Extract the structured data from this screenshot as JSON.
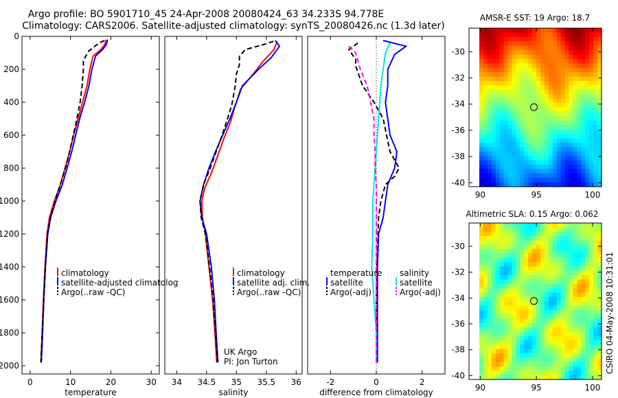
{
  "header": {
    "line1": "Argo profile: BO 5901710_45 24-Apr-2008 20080424_63 34.233S 94.778E",
    "line2": "Climatology: CARS2006. Satellite-adjusted climatology: synTS_20080426.nc (1.3d later)"
  },
  "colors": {
    "climatology": "#ff0000",
    "satellite": "#0000ff",
    "argo": "#000000",
    "argo_adj": "#ff00ff",
    "sat_salinity": "#00e5e5"
  },
  "chart_data": [
    {
      "type": "line",
      "xlabel": "temperature",
      "xlim": [
        -2,
        32
      ],
      "ylim": [
        2050,
        0
      ],
      "xticks": [
        0,
        10,
        20,
        30
      ],
      "yticks": [
        0,
        200,
        400,
        600,
        800,
        1000,
        1200,
        1400,
        1600,
        1800,
        2000
      ],
      "legend": {
        "position": "lower-right",
        "entries": [
          "climatology",
          "satellite-adjusted climatolog",
          "Argo(..raw -QC)"
        ]
      },
      "series": [
        {
          "name": "climatology",
          "color": "#ff0000",
          "dash": "solid",
          "points": [
            [
              18.8,
              20
            ],
            [
              18.5,
              50
            ],
            [
              17.5,
              80
            ],
            [
              15.6,
              120
            ],
            [
              14.8,
              200
            ],
            [
              14.1,
              300
            ],
            [
              13.0,
              400
            ],
            [
              11.9,
              500
            ],
            [
              10.8,
              600
            ],
            [
              9.8,
              700
            ],
            [
              8.9,
              780
            ],
            [
              7.5,
              900
            ],
            [
              6.0,
              1000
            ],
            [
              4.8,
              1100
            ],
            [
              4.2,
              1200
            ],
            [
              3.7,
              1400
            ],
            [
              3.3,
              1600
            ],
            [
              3.0,
              1800
            ],
            [
              2.7,
              1980
            ]
          ]
        },
        {
          "name": "satellite-adjusted climatolog",
          "color": "#0000ff",
          "dash": "solid",
          "points": [
            [
              19.2,
              20
            ],
            [
              18.9,
              50
            ],
            [
              18.0,
              80
            ],
            [
              16.2,
              120
            ],
            [
              15.3,
              200
            ],
            [
              14.6,
              300
            ],
            [
              13.5,
              400
            ],
            [
              12.3,
              500
            ],
            [
              11.3,
              600
            ],
            [
              10.3,
              700
            ],
            [
              9.4,
              780
            ],
            [
              8.0,
              900
            ],
            [
              6.4,
              1000
            ],
            [
              5.1,
              1100
            ],
            [
              4.4,
              1200
            ],
            [
              3.8,
              1400
            ],
            [
              3.4,
              1600
            ],
            [
              3.1,
              1800
            ],
            [
              2.8,
              1980
            ]
          ]
        },
        {
          "name": "Argo(..raw -QC)",
          "color": "#000000",
          "dash": "dashed",
          "points": [
            [
              18.4,
              25
            ],
            [
              17.2,
              40
            ],
            [
              16.3,
              55
            ],
            [
              14.5,
              90
            ],
            [
              13.8,
              120
            ],
            [
              13.2,
              150
            ],
            [
              13.2,
              200
            ],
            [
              12.9,
              300
            ],
            [
              12.4,
              400
            ],
            [
              11.6,
              500
            ],
            [
              10.7,
              600
            ],
            [
              9.8,
              700
            ],
            [
              9.0,
              780
            ],
            [
              7.5,
              900
            ],
            [
              6.2,
              1000
            ],
            [
              5.0,
              1100
            ],
            [
              4.3,
              1200
            ],
            [
              3.8,
              1400
            ],
            [
              3.4,
              1600
            ],
            [
              3.0,
              1800
            ],
            [
              2.7,
              1980
            ]
          ]
        }
      ]
    },
    {
      "type": "line",
      "xlabel": "salinity",
      "xlim": [
        33.8,
        36.1
      ],
      "ylim": [
        2050,
        0
      ],
      "xticks": [
        34,
        34.5,
        35,
        35.5,
        36
      ],
      "yticks": [],
      "legend": {
        "position": "lower-right",
        "entries": [
          "climatology",
          "satellite adj. clim.",
          "Argo(..raw -QC)"
        ]
      },
      "annotation": [
        "UK Argo",
        "PI: Jon Turton"
      ],
      "series": [
        {
          "name": "climatology",
          "color": "#ff0000",
          "dash": "solid",
          "points": [
            [
              35.68,
              30
            ],
            [
              35.63,
              80
            ],
            [
              35.45,
              150
            ],
            [
              35.3,
              220
            ],
            [
              35.07,
              320
            ],
            [
              34.98,
              420
            ],
            [
              34.9,
              520
            ],
            [
              34.79,
              620
            ],
            [
              34.69,
              720
            ],
            [
              34.59,
              820
            ],
            [
              34.47,
              920
            ],
            [
              34.42,
              1000
            ],
            [
              34.43,
              1100
            ],
            [
              34.48,
              1200
            ],
            [
              34.54,
              1400
            ],
            [
              34.6,
              1600
            ],
            [
              34.64,
              1800
            ],
            [
              34.67,
              1980
            ]
          ]
        },
        {
          "name": "satellite adj. clim.",
          "color": "#0000ff",
          "dash": "solid",
          "points": [
            [
              35.65,
              25
            ],
            [
              35.72,
              60
            ],
            [
              35.58,
              130
            ],
            [
              35.37,
              200
            ],
            [
              35.1,
              300
            ],
            [
              35.0,
              400
            ],
            [
              34.89,
              500
            ],
            [
              34.77,
              600
            ],
            [
              34.65,
              700
            ],
            [
              34.54,
              800
            ],
            [
              34.45,
              900
            ],
            [
              34.39,
              1000
            ],
            [
              34.42,
              1100
            ],
            [
              34.5,
              1200
            ],
            [
              34.58,
              1400
            ],
            [
              34.63,
              1600
            ],
            [
              34.66,
              1800
            ],
            [
              34.69,
              1980
            ]
          ]
        },
        {
          "name": "Argo(..raw -QC)",
          "color": "#000000",
          "dash": "dashed",
          "points": [
            [
              35.62,
              30
            ],
            [
              35.5,
              45
            ],
            [
              35.15,
              80
            ],
            [
              35.05,
              120
            ],
            [
              35.05,
              170
            ],
            [
              35.0,
              230
            ],
            [
              34.98,
              300
            ],
            [
              34.95,
              360
            ],
            [
              34.92,
              420
            ],
            [
              34.85,
              500
            ],
            [
              34.76,
              600
            ],
            [
              34.66,
              700
            ],
            [
              34.56,
              800
            ],
            [
              34.45,
              900
            ],
            [
              34.39,
              1000
            ],
            [
              34.41,
              1100
            ],
            [
              34.48,
              1200
            ],
            [
              34.55,
              1400
            ],
            [
              34.61,
              1600
            ],
            [
              34.65,
              1800
            ],
            [
              34.68,
              1980
            ]
          ]
        }
      ]
    },
    {
      "type": "line",
      "xlabel": "difference from climatology",
      "xlim": [
        -3,
        3
      ],
      "ylim": [
        2050,
        0
      ],
      "xticks": [
        -2,
        0,
        2
      ],
      "yticks": [],
      "legend": {
        "position": "lower-right",
        "columns": [
          {
            "header": "temperature",
            "entries": [
              "satellite",
              "Argo(-adj)"
            ]
          },
          {
            "header": "salinity",
            "entries": [
              "satellite",
              "Argo(-adj)"
            ]
          }
        ]
      },
      "series": [
        {
          "name": "satellite",
          "group": "temperature",
          "color": "#0000ff",
          "dash": "solid",
          "points": [
            [
              0.3,
              25
            ],
            [
              1.3,
              60
            ],
            [
              0.8,
              110
            ],
            [
              0.5,
              200
            ],
            [
              0.5,
              300
            ],
            [
              0.4,
              400
            ],
            [
              0.5,
              500
            ],
            [
              0.6,
              600
            ],
            [
              0.9,
              700
            ],
            [
              0.8,
              800
            ],
            [
              0.5,
              900
            ],
            [
              0.4,
              1000
            ],
            [
              0.3,
              1100
            ],
            [
              0.1,
              1200
            ],
            [
              0.05,
              1400
            ],
            [
              0.05,
              1600
            ],
            [
              0.05,
              1800
            ],
            [
              0.05,
              1980
            ]
          ]
        },
        {
          "name": "Argo(-adj)",
          "group": "temperature",
          "color": "#000000",
          "dash": "dashed",
          "points": [
            [
              -0.8,
              40
            ],
            [
              -1.2,
              80
            ],
            [
              -0.9,
              140
            ],
            [
              -0.9,
              180
            ],
            [
              -0.6,
              300
            ],
            [
              -0.1,
              400
            ],
            [
              0.3,
              500
            ],
            [
              0.6,
              700
            ],
            [
              1.0,
              800
            ],
            [
              0.8,
              850
            ],
            [
              0.4,
              900
            ],
            [
              0.2,
              1000
            ],
            [
              0.1,
              1100
            ],
            [
              0.05,
              1300
            ],
            [
              0,
              1600
            ],
            [
              0,
              1980
            ]
          ]
        },
        {
          "name": "satellite",
          "group": "salinity",
          "color": "#00e5e5",
          "dash": "solid",
          "points": [
            [
              0.6,
              40
            ],
            [
              0.4,
              100
            ],
            [
              0.3,
              200
            ],
            [
              0.2,
              300
            ],
            [
              0.15,
              400
            ],
            [
              0.1,
              500
            ],
            [
              0.05,
              600
            ],
            [
              0,
              700
            ],
            [
              -0.05,
              800
            ],
            [
              -0.1,
              900
            ],
            [
              -0.15,
              1000
            ],
            [
              -0.15,
              1200
            ],
            [
              -0.2,
              1400
            ],
            [
              -0.1,
              1600
            ],
            [
              0,
              1800
            ],
            [
              0,
              1980
            ]
          ]
        },
        {
          "name": "Argo(-adj)",
          "group": "salinity",
          "color": "#ff00ff",
          "dash": "dashed",
          "points": [
            [
              -1.2,
              60
            ],
            [
              -0.9,
              100
            ],
            [
              -0.7,
              200
            ],
            [
              -0.4,
              300
            ],
            [
              -0.25,
              400
            ],
            [
              -0.1,
              500
            ],
            [
              -0.1,
              600
            ],
            [
              -0.05,
              700
            ],
            [
              -0.05,
              800
            ],
            [
              0,
              900
            ],
            [
              0,
              1200
            ],
            [
              0,
              1980
            ]
          ]
        }
      ]
    },
    {
      "type": "heatmap",
      "title": "AMSR-E SST: 19 Argo: 18.7",
      "xlim": [
        89,
        100.8
      ],
      "ylim": [
        -40.3,
        -28.2
      ],
      "xticks": [
        90,
        95,
        100
      ],
      "yticks": [
        -30,
        -32,
        -34,
        -36,
        -38,
        -40
      ],
      "marker": {
        "lon": 94.778,
        "lat": -34.233
      },
      "value_range": [
        16,
        21
      ],
      "colormap": "jet"
    },
    {
      "type": "heatmap",
      "title": "Altimetric SLA: 0.15 Argo: 0.062",
      "xlim": [
        89,
        100.8
      ],
      "ylim": [
        -40.3,
        -28.2
      ],
      "xticks": [
        90,
        95,
        100
      ],
      "yticks": [
        -30,
        -32,
        -34,
        -36,
        -38,
        -40
      ],
      "marker": {
        "lon": 94.778,
        "lat": -34.233
      },
      "value_range": [
        -0.2,
        0.4
      ],
      "colormap": "jet"
    }
  ],
  "side_label": "CSIRO 04-May-2008 10:31:01"
}
